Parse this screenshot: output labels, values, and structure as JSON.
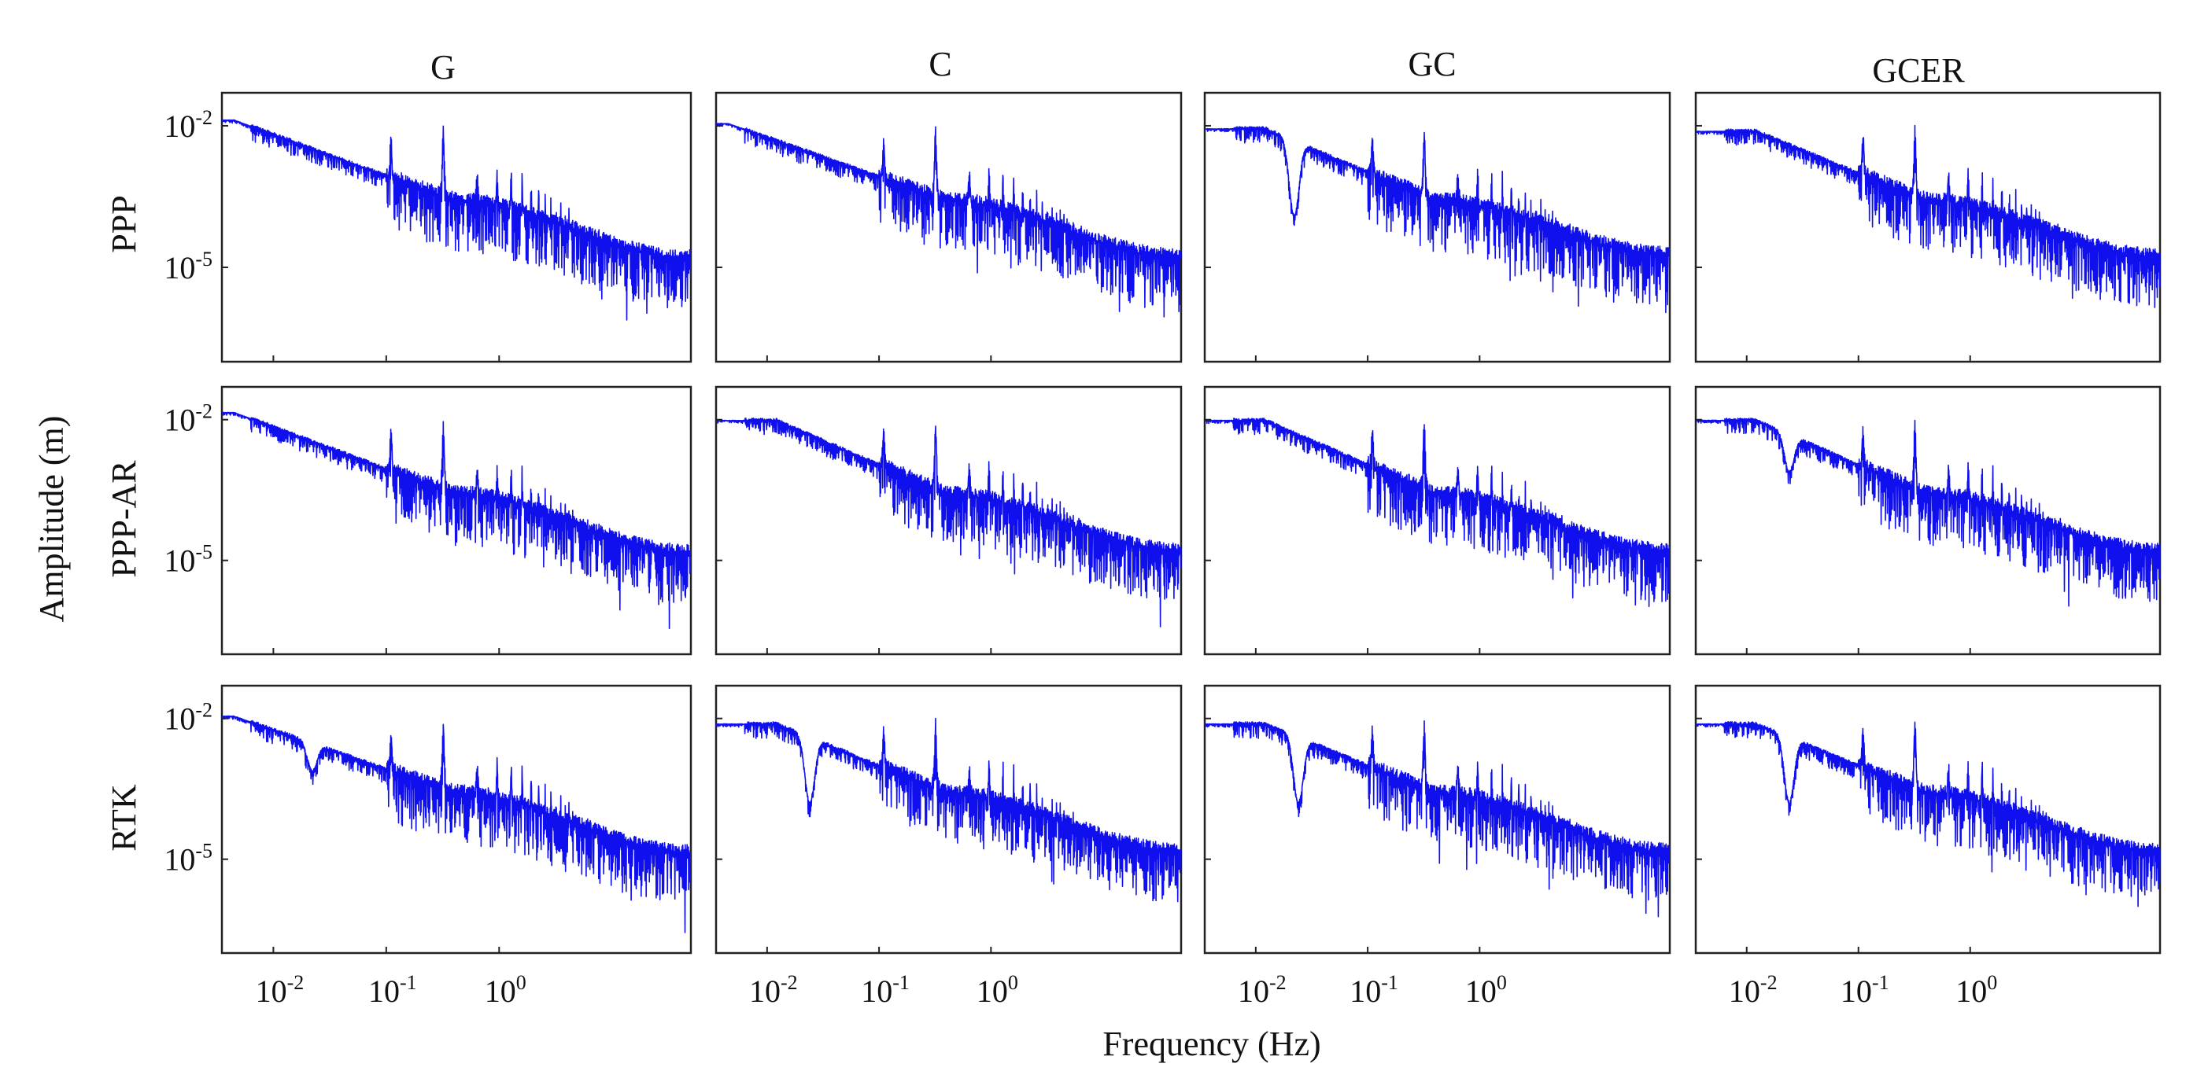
{
  "chart_data": {
    "type": "line",
    "title": "",
    "xlabel": "Frequency (Hz)",
    "ylabel": "Amplitude (m)",
    "xscale": "log",
    "yscale": "log",
    "xlim": [
      0.0035,
      50
    ],
    "ylim": [
      1e-07,
      0.05
    ],
    "xticks": [
      {
        "base": "10",
        "exp": "-2",
        "value": 0.01
      },
      {
        "base": "10",
        "exp": "-1",
        "value": 0.1
      },
      {
        "base": "10",
        "exp": "0",
        "value": 1
      }
    ],
    "yticks": [
      {
        "base": "10",
        "exp": "-2",
        "value": 0.01
      },
      {
        "base": "10",
        "exp": "-5",
        "value": 1e-05
      }
    ],
    "columns": [
      "G",
      "C",
      "GC",
      "GCER"
    ],
    "rows": [
      "PPP",
      "PPP-AR",
      "RTK"
    ],
    "line_color": "#1010ee",
    "spectral_peaks_hz": [
      0.11,
      0.32
    ],
    "panels": [
      {
        "row": "PPP",
        "column": "G",
        "seed": 11,
        "low_freq_amplitude": 0.013,
        "plateau_end_hz": 0.0045,
        "dip_hz": null,
        "dip_depth": 0,
        "high_freq_floor": 1.5e-05
      },
      {
        "row": "PPP",
        "column": "C",
        "seed": 12,
        "low_freq_amplitude": 0.011,
        "plateau_end_hz": 0.0045,
        "dip_hz": null,
        "dip_depth": 0,
        "high_freq_floor": 1.6e-05
      },
      {
        "row": "PPP",
        "column": "GC",
        "seed": 13,
        "low_freq_amplitude": 0.0085,
        "plateau_end_hz": 0.012,
        "dip_hz": 0.022,
        "dip_depth": 1.6,
        "high_freq_floor": 1.8e-05
      },
      {
        "row": "PPP",
        "column": "GCER",
        "seed": 14,
        "low_freq_amplitude": 0.0075,
        "plateau_end_hz": 0.012,
        "dip_hz": null,
        "dip_depth": 0,
        "high_freq_floor": 1.6e-05
      },
      {
        "row": "PPP-AR",
        "column": "G",
        "seed": 21,
        "low_freq_amplitude": 0.014,
        "plateau_end_hz": 0.0045,
        "dip_hz": null,
        "dip_depth": 0,
        "high_freq_floor": 1.4e-05
      },
      {
        "row": "PPP-AR",
        "column": "C",
        "seed": 22,
        "low_freq_amplitude": 0.0095,
        "plateau_end_hz": 0.012,
        "dip_hz": null,
        "dip_depth": 0,
        "high_freq_floor": 1.5e-05
      },
      {
        "row": "PPP-AR",
        "column": "GC",
        "seed": 23,
        "low_freq_amplitude": 0.0095,
        "plateau_end_hz": 0.012,
        "dip_hz": null,
        "dip_depth": 0,
        "high_freq_floor": 1.5e-05
      },
      {
        "row": "PPP-AR",
        "column": "GCER",
        "seed": 24,
        "low_freq_amplitude": 0.0095,
        "plateau_end_hz": 0.012,
        "dip_hz": 0.024,
        "dip_depth": 0.8,
        "high_freq_floor": 1.5e-05
      },
      {
        "row": "RTK",
        "column": "G",
        "seed": 31,
        "low_freq_amplitude": 0.011,
        "plateau_end_hz": 0.0045,
        "dip_hz": 0.022,
        "dip_depth": 0.6,
        "high_freq_floor": 1.3e-05
      },
      {
        "row": "RTK",
        "column": "C",
        "seed": 32,
        "low_freq_amplitude": 0.0075,
        "plateau_end_hz": 0.012,
        "dip_hz": 0.024,
        "dip_depth": 1.4,
        "high_freq_floor": 1.4e-05
      },
      {
        "row": "RTK",
        "column": "GC",
        "seed": 33,
        "low_freq_amplitude": 0.0075,
        "plateau_end_hz": 0.012,
        "dip_hz": 0.024,
        "dip_depth": 1.4,
        "high_freq_floor": 1.4e-05
      },
      {
        "row": "RTK",
        "column": "GCER",
        "seed": 34,
        "low_freq_amplitude": 0.0075,
        "plateau_end_hz": 0.012,
        "dip_hz": 0.024,
        "dip_depth": 1.4,
        "high_freq_floor": 1.4e-05
      }
    ]
  }
}
